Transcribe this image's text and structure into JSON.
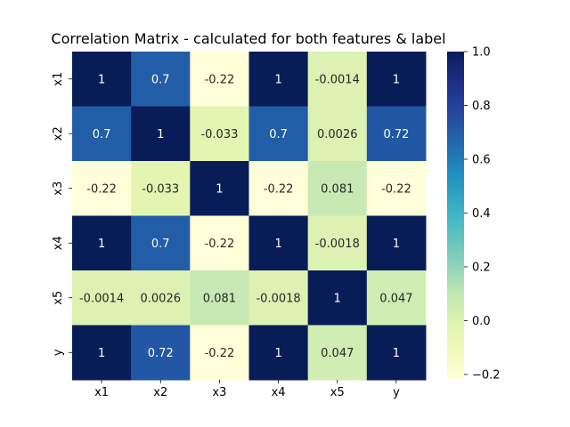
{
  "chart_data": {
    "type": "heatmap",
    "title": "Correlation Matrix - calculated for both features & label",
    "x_labels": [
      "x1",
      "x2",
      "x3",
      "x4",
      "x5",
      "y"
    ],
    "y_labels": [
      "x1",
      "x2",
      "x3",
      "x4",
      "x5",
      "y"
    ],
    "values": [
      [
        1,
        0.7,
        -0.22,
        1,
        -0.0014,
        1
      ],
      [
        0.7,
        1,
        -0.033,
        0.7,
        0.0026,
        0.72
      ],
      [
        -0.22,
        -0.033,
        1,
        -0.22,
        0.081,
        -0.22
      ],
      [
        1,
        0.7,
        -0.22,
        1,
        -0.0018,
        1
      ],
      [
        -0.0014,
        0.0026,
        0.081,
        -0.0018,
        1,
        0.047
      ],
      [
        1,
        0.72,
        -0.22,
        1,
        0.047,
        1
      ]
    ],
    "annotations": [
      [
        "1",
        "0.7",
        "-0.22",
        "1",
        "-0.0014",
        "1"
      ],
      [
        "0.7",
        "1",
        "-0.033",
        "0.7",
        "0.0026",
        "0.72"
      ],
      [
        "-0.22",
        "-0.033",
        "1",
        "-0.22",
        "0.081",
        "-0.22"
      ],
      [
        "1",
        "0.7",
        "-0.22",
        "1",
        "-0.0018",
        "1"
      ],
      [
        "-0.0014",
        "0.0026",
        "0.081",
        "-0.0018",
        "1",
        "0.047"
      ],
      [
        "1",
        "0.72",
        "-0.22",
        "1",
        "0.047",
        "1"
      ]
    ],
    "colormap": "YlGnBu",
    "vmin": -0.22,
    "vmax": 1,
    "colorbar_ticks": [
      1.0,
      0.8,
      0.6,
      0.4,
      0.2,
      0.0,
      -0.2
    ],
    "colorbar_tick_labels": [
      "1.0",
      "0.8",
      "0.6",
      "0.4",
      "0.2",
      "0.0",
      "−0.2"
    ]
  }
}
